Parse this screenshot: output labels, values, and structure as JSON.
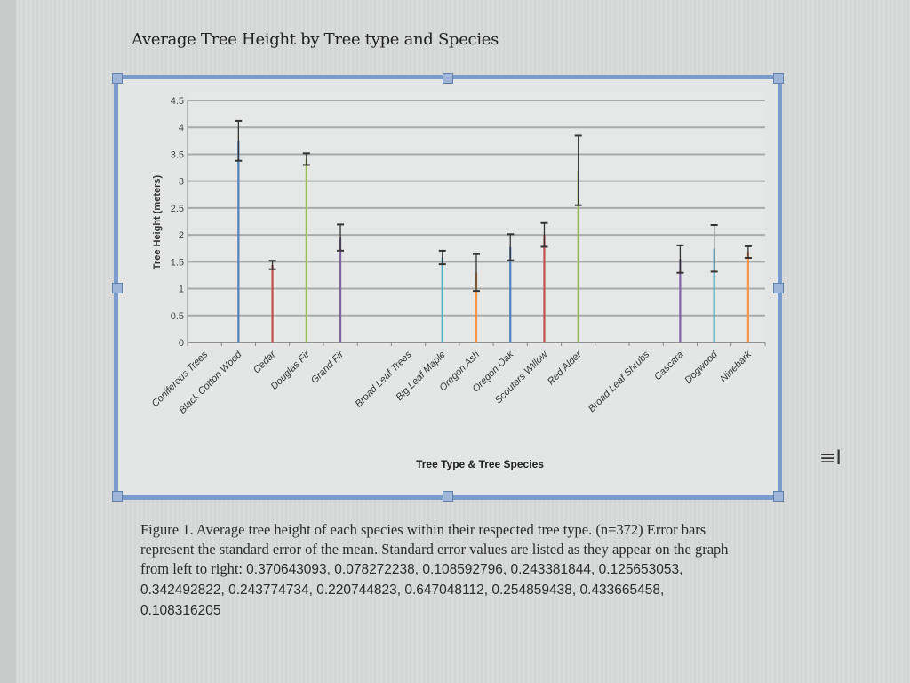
{
  "document": {
    "title": "Average Tree Height by Tree type and Species",
    "caption_lead": "Figure 1. Average tree height of each species within their respected tree type. (n=372) Error bars represent the standard error of the mean. Standard error values are listed as they appear on the graph from left to right: ",
    "caption_values": "0.370643093, 0.078272238, 0.108592796, 0.243381844, 0.125653053, 0.342492822, 0.243774734, 0.220744823, 0.647048112, 0.254859438, 0.433665458, 0.108316205",
    "cursor_icon": "text-cursor-icon"
  },
  "chart_data": {
    "type": "bar",
    "title": "",
    "xlabel": "Tree Type & Tree Species",
    "ylabel": "Tree Height (meters)",
    "ylim": [
      0,
      4.5
    ],
    "yticks": [
      "0",
      "0.5",
      "1",
      "1.5",
      "2",
      "2.5",
      "3",
      "3.5",
      "4",
      "4.5"
    ],
    "grid": true,
    "legend": "none",
    "categories": [
      "Coniferous Trees",
      "Black Cotton Wood",
      "Cedar",
      "Douglas Fir",
      "Grand Fir",
      "",
      "Broad Leaf Trees",
      "Big Leaf Maple",
      "Oregon Ash",
      "Oregon Oak",
      "Scouters Willow",
      "Red Alder",
      "",
      "Broad Leaf Shrubs",
      "Cascara",
      "Dogwood",
      "Ninebark"
    ],
    "values": [
      null,
      3.75,
      1.44,
      3.41,
      1.95,
      null,
      null,
      1.58,
      1.3,
      1.77,
      2.0,
      3.2,
      null,
      null,
      1.55,
      1.75,
      1.68
    ],
    "errors": [
      null,
      0.370643093,
      0.078272238,
      0.108592796,
      0.243381844,
      null,
      null,
      0.125653053,
      0.342492822,
      0.243774734,
      0.220744823,
      0.647048112,
      null,
      null,
      0.254859438,
      0.433665458,
      0.108316205
    ],
    "colors": [
      "#4f81bd",
      "#4f81bd",
      "#c0504d",
      "#9bbb59",
      "#8064a2",
      "#4bacc6",
      "#4bacc6",
      "#4bacc6",
      "#f79646",
      "#4f81bd",
      "#c0504d",
      "#9bbb59",
      "#9bbb59",
      "#9bbb59",
      "#8064a2",
      "#4bacc6",
      "#f79646"
    ]
  }
}
